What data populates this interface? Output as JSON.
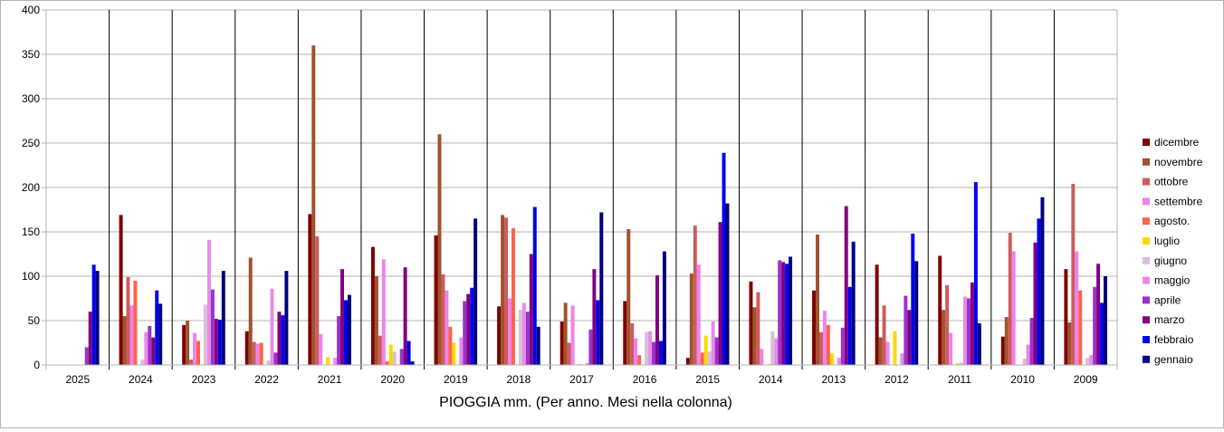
{
  "chart_data": {
    "type": "bar",
    "title": "",
    "xlabel": "PIOGGIA mm. (Per anno. Mesi nella colonna)",
    "ylabel": "",
    "ylim": [
      0,
      400
    ],
    "yticks": [
      0,
      50,
      100,
      150,
      200,
      250,
      300,
      350,
      400
    ],
    "grid": true,
    "legend_position": "right",
    "categories": [
      "2025",
      "2024",
      "2023",
      "2022",
      "2021",
      "2020",
      "2019",
      "2018",
      "2017",
      "2016",
      "2015",
      "2014",
      "2013",
      "2012",
      "2011",
      "2010",
      "2009"
    ],
    "series": [
      {
        "name": "dicembre",
        "color": "#7f0000",
        "values": [
          0,
          169,
          45,
          38,
          170,
          133,
          146,
          66,
          49,
          72,
          8,
          94,
          84,
          113,
          123,
          32,
          108
        ]
      },
      {
        "name": "novembre",
        "color": "#a0522d",
        "values": [
          0,
          55,
          50,
          121,
          360,
          100,
          260,
          169,
          70,
          153,
          103,
          65,
          147,
          31,
          62,
          54,
          48
        ]
      },
      {
        "name": "ottobre",
        "color": "#cd5c5c",
        "values": [
          0,
          99,
          6,
          26,
          145,
          33,
          102,
          166,
          25,
          47,
          157,
          82,
          37,
          67,
          90,
          149,
          204
        ]
      },
      {
        "name": "settembre",
        "color": "#ee82ee",
        "values": [
          0,
          67,
          36,
          24,
          35,
          119,
          84,
          75,
          67,
          30,
          113,
          18,
          61,
          26,
          36,
          128,
          128
        ]
      },
      {
        "name": "agosto.",
        "color": "#ff6347",
        "values": [
          0,
          95,
          27,
          25,
          0,
          4,
          43,
          154,
          0,
          11,
          14,
          0,
          45,
          0,
          0,
          0,
          84
        ]
      },
      {
        "name": "luglio",
        "color": "#ffd700",
        "values": [
          0,
          0,
          0,
          0,
          9,
          23,
          25,
          0,
          1,
          0,
          33,
          1,
          13,
          38,
          2,
          0,
          0
        ]
      },
      {
        "name": "giugno",
        "color": "#d8bfd8",
        "values": [
          0,
          6,
          68,
          5,
          0,
          15,
          0,
          62,
          0,
          37,
          15,
          38,
          0,
          0,
          3,
          7,
          8
        ]
      },
      {
        "name": "maggio",
        "color": "#e88ae8",
        "values": [
          0,
          37,
          141,
          86,
          8,
          0,
          31,
          70,
          2,
          38,
          49,
          30,
          8,
          13,
          77,
          23,
          11
        ]
      },
      {
        "name": "aprile",
        "color": "#9932cc",
        "values": [
          20,
          44,
          85,
          14,
          55,
          18,
          72,
          60,
          40,
          26,
          31,
          118,
          42,
          78,
          75,
          53,
          88
        ]
      },
      {
        "name": "marzo",
        "color": "#800080",
        "values": [
          60,
          31,
          52,
          60,
          108,
          110,
          80,
          125,
          108,
          101,
          161,
          116,
          179,
          62,
          93,
          138,
          114
        ]
      },
      {
        "name": "febbraio",
        "color": "#0000ee",
        "values": [
          113,
          84,
          51,
          56,
          73,
          27,
          87,
          178,
          73,
          27,
          239,
          114,
          88,
          148,
          206,
          165,
          70
        ]
      },
      {
        "name": "gennaio",
        "color": "#000080",
        "values": [
          106,
          69,
          106,
          106,
          79,
          4,
          165,
          43,
          172,
          128,
          182,
          122,
          139,
          117,
          47,
          189,
          100
        ]
      }
    ]
  }
}
